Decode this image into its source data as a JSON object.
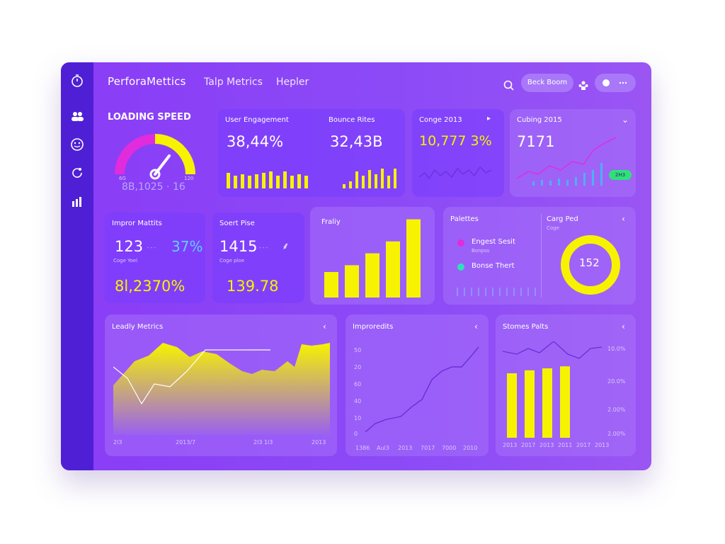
{
  "sidebar": {
    "icons": [
      "timer-icon",
      "users-icon",
      "smile-icon",
      "refresh-icon",
      "bar-chart-icon"
    ]
  },
  "header": {
    "brand": "PerforaMettics",
    "nav": [
      "Talp Metrics",
      "Hepler"
    ],
    "action_label": "Beck Boom"
  },
  "loading_speed": {
    "title": "LOADING SPEED",
    "value": "8B,1025 · 16",
    "min_label": "6G",
    "max_label": "120"
  },
  "engagement": {
    "title1": "User Engagement",
    "value1": "38,44%",
    "title2": "Bounce Rites",
    "value2": "32,43B",
    "bars1": [
      0.55,
      0.45,
      0.5,
      0.45,
      0.5,
      0.55,
      0.6,
      0.45,
      0.6,
      0.45,
      0.5,
      0.45
    ],
    "bars2": [
      0.15,
      0.25,
      0.6,
      0.45,
      0.65,
      0.5,
      0.7,
      0.45,
      0.7
    ]
  },
  "conge": {
    "title": "Conge 2013",
    "value": "10,777 3%"
  },
  "cubing": {
    "title": "Cubing 2015",
    "value": "7171",
    "badge": "2H3"
  },
  "improv": {
    "title": "Impror Mattits",
    "value": "123",
    "pct": "37%",
    "sub": "Coge Yoel",
    "bottom": "8l,2370%"
  },
  "sport": {
    "title": "Soert Pise",
    "value": "1415",
    "sub": "Coge ploe",
    "bottom": "139.78"
  },
  "frality": {
    "title": "Fraliy",
    "values": [
      0.3,
      0.38,
      0.52,
      0.66,
      0.92
    ]
  },
  "palettes": {
    "title": "Palettes",
    "legend1": "Engest Sesit",
    "legend2": "Bonse Thert",
    "sub": "Bonpss"
  },
  "donut": {
    "title": "Carg Ped",
    "sub": "Coge",
    "value": "152"
  },
  "leadly": {
    "title": "Leadly Metrics",
    "xlabels": [
      "2l3",
      "2013/7",
      "2l3 1l3",
      "2013"
    ]
  },
  "improveits": {
    "title": "Improredits",
    "ylabels": [
      "50",
      "20",
      "60",
      "40",
      "10",
      "0"
    ],
    "xlabels": [
      "1386",
      "Aul3",
      "2013",
      "7017",
      "7000",
      "2010"
    ]
  },
  "stomes": {
    "title": "Stomes Palts",
    "ylabels": [
      "10.0%",
      "20.0%",
      "2.00%",
      "2.00%"
    ],
    "xlabels": [
      "2013",
      "2017",
      "2013",
      "2011",
      "2017",
      "2013"
    ],
    "bars": [
      0.65,
      0.68,
      0.7,
      0.72
    ]
  }
}
